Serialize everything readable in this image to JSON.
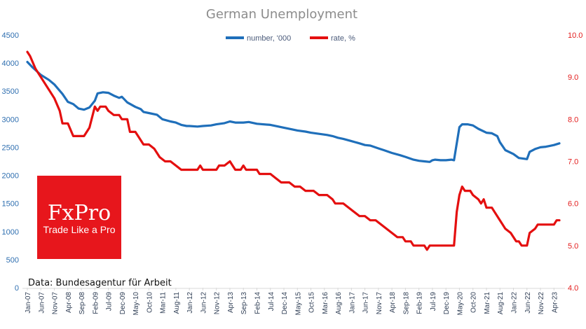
{
  "chart_data": {
    "type": "line",
    "title": "German Unemployment",
    "source": "Data: Bundesagentur für Arbeit",
    "logo": {
      "brand": "FxPro",
      "tagline": "Trade Like a Pro"
    },
    "colors": {
      "number": "#1f6fba",
      "rate": "#e40f0f",
      "logo_bg": "#e7161c"
    },
    "x_tick_labels": [
      "Jan-07",
      "Jun-07",
      "Nov-07",
      "Apr-08",
      "Sep-08",
      "Feb-09",
      "Jul-09",
      "Dec-09",
      "May-10",
      "Oct-10",
      "Mar-11",
      "Aug-11",
      "Jan-12",
      "Jun-12",
      "Nov-12",
      "Apr-13",
      "Sep-13",
      "Feb-14",
      "Jul-14",
      "Dec-14",
      "May-15",
      "Oct-15",
      "Mar-16",
      "Aug-16",
      "Jan-17",
      "Jun-17",
      "Nov-17",
      "Apr-18",
      "Sep-18",
      "Feb-19",
      "Jul-19",
      "Dec-19",
      "May-20",
      "Oct-20",
      "Mar-21",
      "Aug-21",
      "Jan-22",
      "Jun-22",
      "Nov-22",
      "Apr-23"
    ],
    "y_left": {
      "min": 0,
      "max": 4500,
      "ticks": [
        0,
        500,
        1000,
        1500,
        2000,
        2500,
        3000,
        3500,
        4000,
        4500
      ]
    },
    "y_right": {
      "min": 4.0,
      "max": 10.0,
      "ticks": [
        "4.0",
        "5.0",
        "6.0",
        "7.0",
        "8.0",
        "9.0",
        "10.0"
      ]
    },
    "legend_position": "top",
    "grid": false,
    "series": [
      {
        "name": "number, '000",
        "axis": "left",
        "points": [
          [
            "Jan-07",
            4020
          ],
          [
            "Mar-07",
            3920
          ],
          [
            "Jun-07",
            3790
          ],
          [
            "Sep-07",
            3700
          ],
          [
            "Nov-07",
            3620
          ],
          [
            "Feb-08",
            3450
          ],
          [
            "Apr-08",
            3310
          ],
          [
            "Jun-08",
            3270
          ],
          [
            "Aug-08",
            3190
          ],
          [
            "Oct-08",
            3170
          ],
          [
            "Dec-08",
            3210
          ],
          [
            "Feb-09",
            3330
          ],
          [
            "Mar-09",
            3460
          ],
          [
            "May-09",
            3480
          ],
          [
            "Jul-09",
            3470
          ],
          [
            "Sep-09",
            3420
          ],
          [
            "Nov-09",
            3380
          ],
          [
            "Dec-09",
            3400
          ],
          [
            "Feb-10",
            3300
          ],
          [
            "May-10",
            3220
          ],
          [
            "Jul-10",
            3180
          ],
          [
            "Aug-10",
            3130
          ],
          [
            "Oct-10",
            3110
          ],
          [
            "Jan-11",
            3080
          ],
          [
            "Mar-11",
            3000
          ],
          [
            "Jun-11",
            2960
          ],
          [
            "Aug-11",
            2940
          ],
          [
            "Oct-11",
            2900
          ],
          [
            "Dec-11",
            2880
          ],
          [
            "Jan-12",
            2880
          ],
          [
            "Apr-12",
            2870
          ],
          [
            "Jun-12",
            2880
          ],
          [
            "Sep-12",
            2890
          ],
          [
            "Nov-12",
            2910
          ],
          [
            "Feb-13",
            2930
          ],
          [
            "Apr-13",
            2960
          ],
          [
            "Jun-13",
            2940
          ],
          [
            "Sep-13",
            2940
          ],
          [
            "Nov-13",
            2950
          ],
          [
            "Feb-14",
            2920
          ],
          [
            "Jul-14",
            2900
          ],
          [
            "Oct-14",
            2870
          ],
          [
            "Dec-14",
            2850
          ],
          [
            "Mar-15",
            2820
          ],
          [
            "May-15",
            2800
          ],
          [
            "Aug-15",
            2780
          ],
          [
            "Oct-15",
            2760
          ],
          [
            "Jan-16",
            2740
          ],
          [
            "Apr-16",
            2720
          ],
          [
            "Jun-16",
            2700
          ],
          [
            "Aug-16",
            2670
          ],
          [
            "Oct-16",
            2650
          ],
          [
            "Jan-17",
            2610
          ],
          [
            "Apr-17",
            2570
          ],
          [
            "Jun-17",
            2540
          ],
          [
            "Aug-17",
            2530
          ],
          [
            "Nov-17",
            2480
          ],
          [
            "Jan-18",
            2450
          ],
          [
            "Apr-18",
            2400
          ],
          [
            "Jul-18",
            2360
          ],
          [
            "Sep-18",
            2330
          ],
          [
            "Dec-18",
            2280
          ],
          [
            "Feb-19",
            2260
          ],
          [
            "Apr-19",
            2250
          ],
          [
            "Jun-19",
            2240
          ],
          [
            "Jul-19",
            2270
          ],
          [
            "Aug-19",
            2280
          ],
          [
            "Oct-19",
            2270
          ],
          [
            "Dec-19",
            2270
          ],
          [
            "Feb-20",
            2280
          ],
          [
            "Mar-20",
            2270
          ],
          [
            "May-20",
            2860
          ],
          [
            "Jun-20",
            2910
          ],
          [
            "Aug-20",
            2910
          ],
          [
            "Oct-20",
            2890
          ],
          [
            "Dec-20",
            2830
          ],
          [
            "Mar-21",
            2760
          ],
          [
            "May-21",
            2750
          ],
          [
            "Jul-21",
            2700
          ],
          [
            "Aug-21",
            2590
          ],
          [
            "Oct-21",
            2450
          ],
          [
            "Jan-22",
            2380
          ],
          [
            "Mar-22",
            2310
          ],
          [
            "Jun-22",
            2290
          ],
          [
            "Jul-22",
            2420
          ],
          [
            "Sep-22",
            2470
          ],
          [
            "Nov-22",
            2500
          ],
          [
            "Jan-23",
            2510
          ],
          [
            "Feb-23",
            2520
          ],
          [
            "Apr-23",
            2540
          ],
          [
            "Jun-23",
            2570
          ]
        ]
      },
      {
        "name": "rate, %",
        "axis": "right",
        "points": [
          [
            "Jan-07",
            9.6
          ],
          [
            "Feb-07",
            9.5
          ],
          [
            "Apr-07",
            9.2
          ],
          [
            "Jun-07",
            9.0
          ],
          [
            "Sep-07",
            8.7
          ],
          [
            "Nov-07",
            8.5
          ],
          [
            "Jan-08",
            8.2
          ],
          [
            "Feb-08",
            7.9
          ],
          [
            "Apr-08",
            7.9
          ],
          [
            "Jun-08",
            7.6
          ],
          [
            "Aug-08",
            7.6
          ],
          [
            "Oct-08",
            7.6
          ],
          [
            "Dec-08",
            7.8
          ],
          [
            "Feb-09",
            8.3
          ],
          [
            "Mar-09",
            8.2
          ],
          [
            "Apr-09",
            8.3
          ],
          [
            "Jun-09",
            8.3
          ],
          [
            "Jul-09",
            8.2
          ],
          [
            "Sep-09",
            8.1
          ],
          [
            "Nov-09",
            8.1
          ],
          [
            "Dec-09",
            8.0
          ],
          [
            "Feb-10",
            8.0
          ],
          [
            "Mar-10",
            7.7
          ],
          [
            "May-10",
            7.7
          ],
          [
            "Jun-10",
            7.6
          ],
          [
            "Aug-10",
            7.4
          ],
          [
            "Oct-10",
            7.4
          ],
          [
            "Dec-10",
            7.3
          ],
          [
            "Feb-11",
            7.1
          ],
          [
            "Apr-11",
            7.0
          ],
          [
            "Jun-11",
            7.0
          ],
          [
            "Aug-11",
            6.9
          ],
          [
            "Oct-11",
            6.8
          ],
          [
            "Dec-11",
            6.8
          ],
          [
            "Jan-12",
            6.8
          ],
          [
            "Apr-12",
            6.8
          ],
          [
            "May-12",
            6.9
          ],
          [
            "Jun-12",
            6.8
          ],
          [
            "Sep-12",
            6.8
          ],
          [
            "Nov-12",
            6.8
          ],
          [
            "Dec-12",
            6.9
          ],
          [
            "Feb-13",
            6.9
          ],
          [
            "Apr-13",
            7.0
          ],
          [
            "May-13",
            6.9
          ],
          [
            "Jun-13",
            6.8
          ],
          [
            "Aug-13",
            6.8
          ],
          [
            "Sep-13",
            6.9
          ],
          [
            "Oct-13",
            6.8
          ],
          [
            "Dec-13",
            6.8
          ],
          [
            "Feb-14",
            6.8
          ],
          [
            "Mar-14",
            6.7
          ],
          [
            "Jul-14",
            6.7
          ],
          [
            "Sep-14",
            6.6
          ],
          [
            "Nov-14",
            6.5
          ],
          [
            "Feb-15",
            6.5
          ],
          [
            "Apr-15",
            6.4
          ],
          [
            "Jun-15",
            6.4
          ],
          [
            "Aug-15",
            6.3
          ],
          [
            "Nov-15",
            6.3
          ],
          [
            "Jan-16",
            6.2
          ],
          [
            "Apr-16",
            6.2
          ],
          [
            "Jun-16",
            6.1
          ],
          [
            "Jul-16",
            6.0
          ],
          [
            "Oct-16",
            6.0
          ],
          [
            "Dec-16",
            5.9
          ],
          [
            "Feb-17",
            5.8
          ],
          [
            "Apr-17",
            5.7
          ],
          [
            "Jun-17",
            5.7
          ],
          [
            "Aug-17",
            5.6
          ],
          [
            "Oct-17",
            5.6
          ],
          [
            "Dec-17",
            5.5
          ],
          [
            "Feb-18",
            5.4
          ],
          [
            "Apr-18",
            5.3
          ],
          [
            "Jun-18",
            5.2
          ],
          [
            "Aug-18",
            5.2
          ],
          [
            "Sep-18",
            5.1
          ],
          [
            "Nov-18",
            5.1
          ],
          [
            "Dec-18",
            5.0
          ],
          [
            "Apr-19",
            5.0
          ],
          [
            "May-19",
            4.9
          ],
          [
            "Jun-19",
            5.0
          ],
          [
            "Dec-19",
            5.0
          ],
          [
            "Mar-20",
            5.0
          ],
          [
            "Apr-20",
            5.8
          ],
          [
            "May-20",
            6.2
          ],
          [
            "Jun-20",
            6.4
          ],
          [
            "Jul-20",
            6.3
          ],
          [
            "Sep-20",
            6.3
          ],
          [
            "Oct-20",
            6.2
          ],
          [
            "Dec-20",
            6.1
          ],
          [
            "Jan-21",
            6.0
          ],
          [
            "Feb-21",
            6.1
          ],
          [
            "Mar-21",
            5.9
          ],
          [
            "May-21",
            5.9
          ],
          [
            "Jun-21",
            5.8
          ],
          [
            "Aug-21",
            5.6
          ],
          [
            "Sep-21",
            5.5
          ],
          [
            "Oct-21",
            5.4
          ],
          [
            "Dec-21",
            5.3
          ],
          [
            "Feb-22",
            5.1
          ],
          [
            "Mar-22",
            5.1
          ],
          [
            "Apr-22",
            5.0
          ],
          [
            "Jun-22",
            5.0
          ],
          [
            "Jul-22",
            5.3
          ],
          [
            "Sep-22",
            5.4
          ],
          [
            "Oct-22",
            5.5
          ],
          [
            "Feb-23",
            5.5
          ],
          [
            "Apr-23",
            5.5
          ],
          [
            "May-23",
            5.6
          ],
          [
            "Jun-23",
            5.6
          ]
        ]
      }
    ]
  }
}
